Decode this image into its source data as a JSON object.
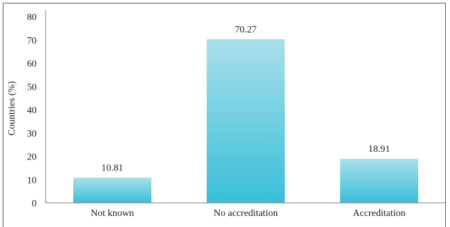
{
  "chart_data": {
    "type": "bar",
    "categories": [
      "Not known",
      "No accreditation",
      "Accreditation"
    ],
    "values": [
      10.81,
      70.27,
      18.91
    ],
    "data_labels": [
      "10.81",
      "70.27",
      "18.91"
    ],
    "title": "",
    "xlabel": "",
    "ylabel": "Countries (%)",
    "ylim": [
      0,
      80
    ],
    "yticks": [
      "0",
      "10",
      "20",
      "30",
      "40",
      "50",
      "60",
      "70",
      "80"
    ],
    "grid": false,
    "legend": "none",
    "colors": {
      "bar_top": "#a9dfe9",
      "bar_bottom": "#39bfd9",
      "axis": "#7f7f7f"
    }
  }
}
